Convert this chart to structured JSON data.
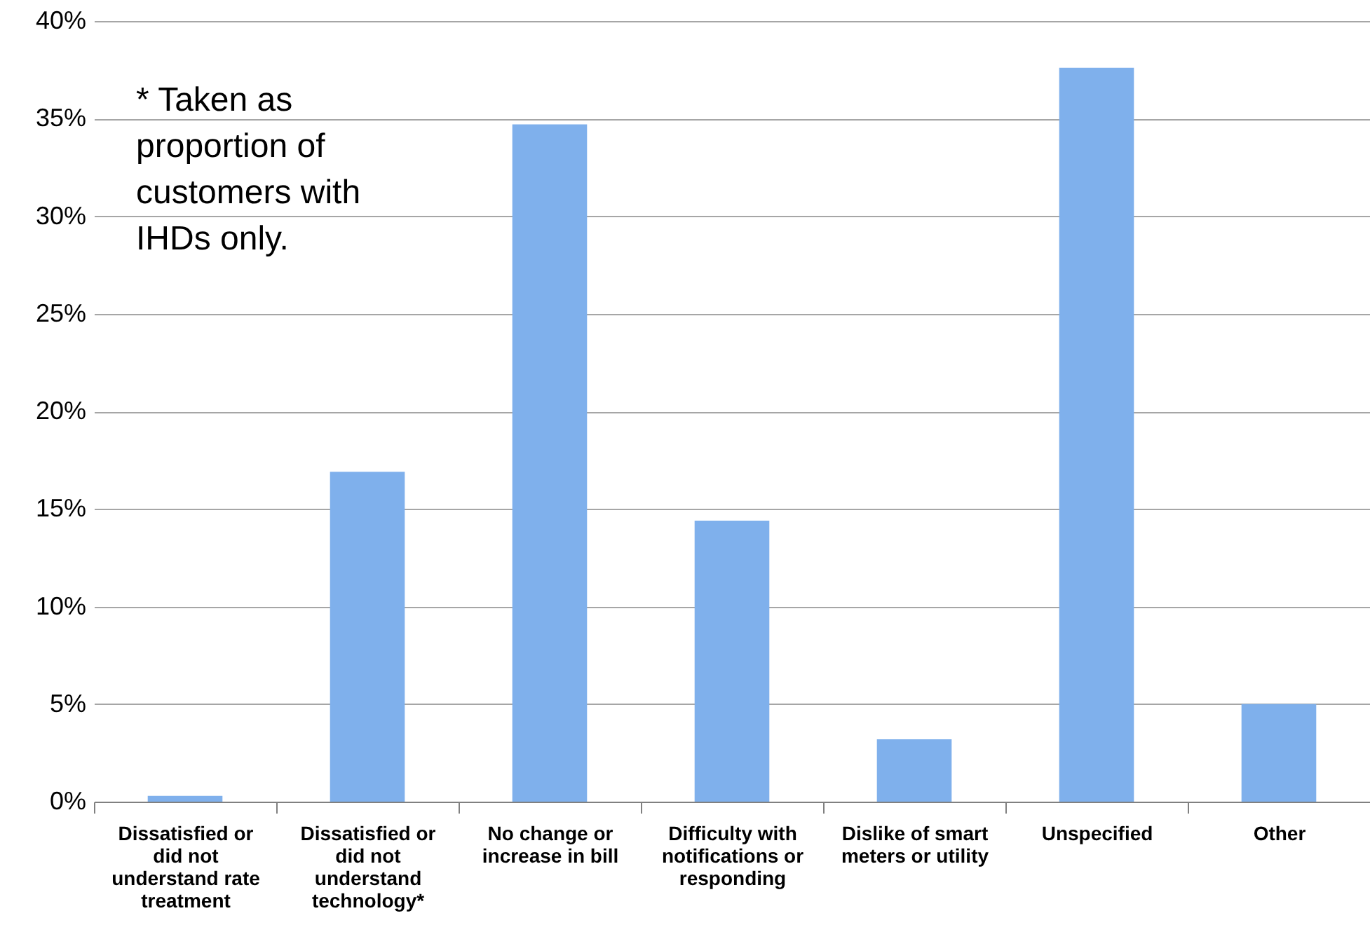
{
  "chart_data": {
    "type": "bar",
    "categories": [
      "Dissatisfied or did not understand rate treatment",
      "Dissatisfied or did not understand technology*",
      "No change or increase in bill",
      "Difficulty with notifications or responding",
      "Dislike of smart meters or utility",
      "Unspecified",
      "Other"
    ],
    "values": [
      0.3,
      16.9,
      34.7,
      14.4,
      3.2,
      37.6,
      5.0
    ],
    "color": "#7fb0ec",
    "ylim": [
      0,
      40
    ],
    "yticks": [
      {
        "value": 0,
        "label": "0%"
      },
      {
        "value": 5,
        "label": "5%"
      },
      {
        "value": 10,
        "label": "10%"
      },
      {
        "value": 15,
        "label": "15%"
      },
      {
        "value": 20,
        "label": "20%"
      },
      {
        "value": 25,
        "label": "25%"
      },
      {
        "value": 30,
        "label": "30%"
      },
      {
        "value": 35,
        "label": "35%"
      },
      {
        "value": 40,
        "label": "40%"
      }
    ],
    "grid": "y",
    "annotations": [
      "* Taken as proportion of customers with IHDs only."
    ]
  }
}
